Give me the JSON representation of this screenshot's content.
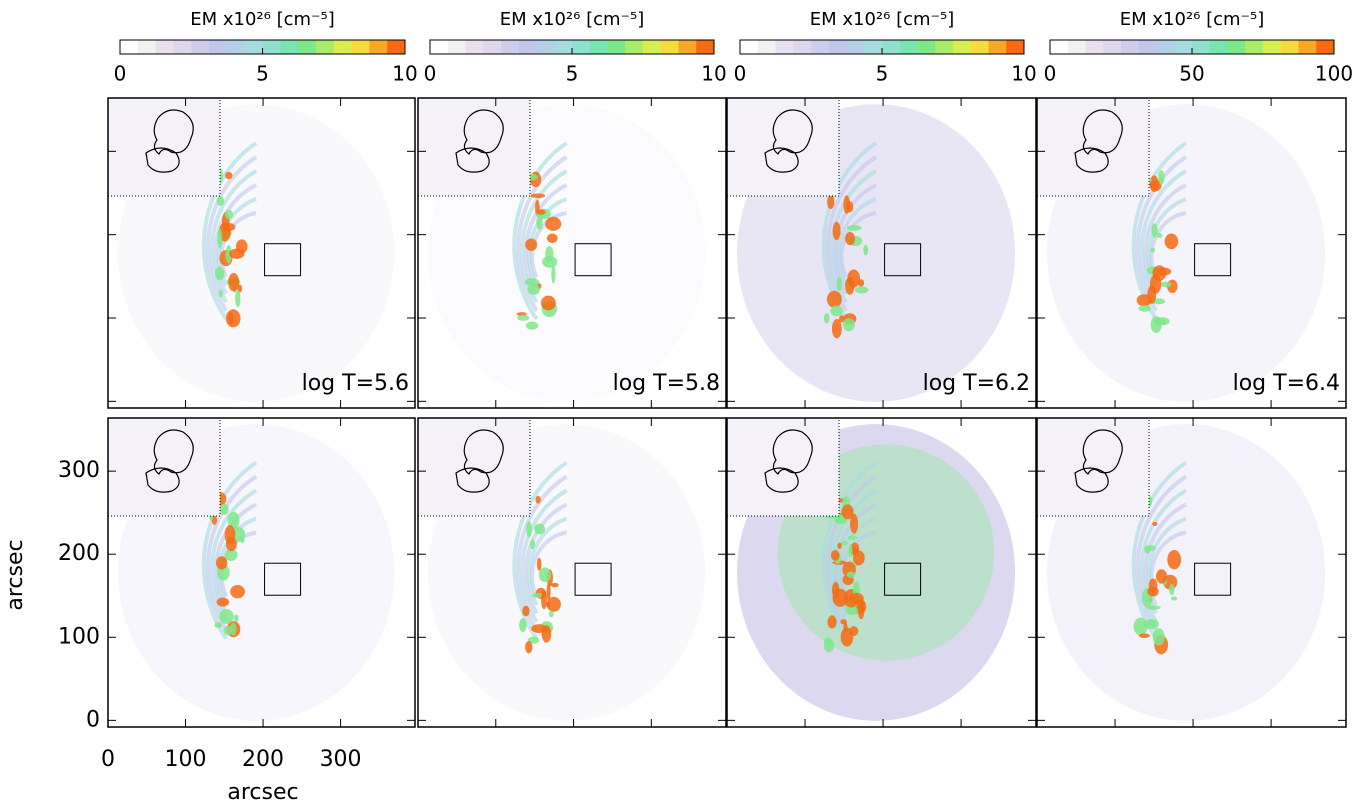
{
  "chart_data": {
    "type": "image-grid",
    "colormap": [
      "#ffffff",
      "#f2f2f2",
      "#e8e0ee",
      "#ddd6ec",
      "#cfcdee",
      "#c0c6ec",
      "#b4cfe8",
      "#a6dbe0",
      "#8fe0cf",
      "#78e5b0",
      "#7ee888",
      "#a8ec6a",
      "#d8ee50",
      "#f5dc3a",
      "#f7a828",
      "#f56a12"
    ],
    "colorbars": [
      {
        "title": "EM x10²⁶ [cm⁻⁵]",
        "lim": [
          0,
          10
        ],
        "ticks": [
          0,
          5,
          10
        ]
      },
      {
        "title": "EM x10²⁶ [cm⁻⁵]",
        "lim": [
          0,
          10
        ],
        "ticks": [
          0,
          5,
          10
        ]
      },
      {
        "title": "EM x10²⁶ [cm⁻⁵]",
        "lim": [
          0,
          10
        ],
        "ticks": [
          0,
          5,
          10
        ]
      },
      {
        "title": "EM x10²⁶ [cm⁻⁵]",
        "lim": [
          0,
          100
        ],
        "ticks": [
          0,
          50,
          100
        ]
      }
    ],
    "labels": [
      "log T=5.6",
      "log T=5.8",
      "log T=6.2",
      "log T=6.4"
    ],
    "xlabel": "arcsec",
    "ylabel": "arcsec",
    "xlim": [
      0,
      396
    ],
    "xticks": [
      0,
      100,
      200,
      300
    ],
    "ylim": [
      -8,
      364
    ],
    "yticks": [
      0,
      100,
      200,
      300
    ]
  }
}
